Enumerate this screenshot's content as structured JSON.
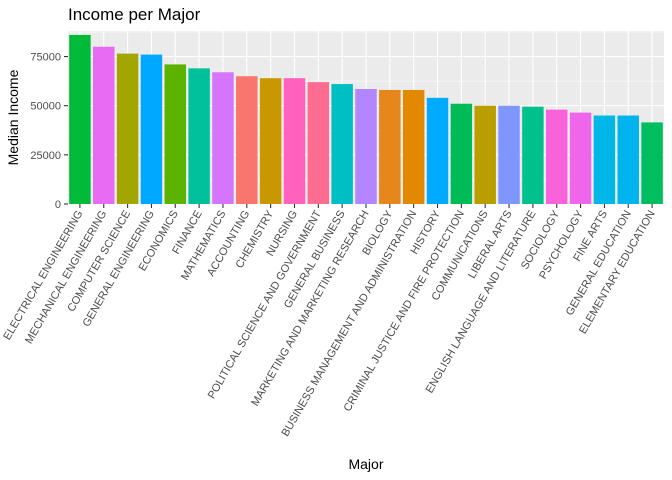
{
  "chart_data": {
    "type": "bar",
    "title": "Income per Major",
    "xlabel": "Major",
    "ylabel": "Median Income",
    "ylim": [
      0,
      88000
    ],
    "yticks": [
      0,
      25000,
      50000,
      75000
    ],
    "ytick_labels": [
      "0",
      "25000",
      "50000",
      "75000"
    ],
    "grid": true,
    "legend": "none",
    "categories": [
      "ELECTRICAL ENGINEERING",
      "MECHANICAL ENGINEERING",
      "COMPUTER SCIENCE",
      "GENERAL ENGINEERING",
      "ECONOMICS",
      "FINANCE",
      "MATHEMATICS",
      "ACCOUNTING",
      "CHEMISTRY",
      "NURSING",
      "POLITICAL SCIENCE AND GOVERNMENT",
      "GENERAL BUSINESS",
      "MARKETING AND MARKETING RESEARCH",
      "BIOLOGY",
      "BUSINESS MANAGEMENT AND ADMINISTRATION",
      "HISTORY",
      "CRIMINAL JUSTICE AND FIRE PROTECTION",
      "COMMUNICATIONS",
      "LIBERAL ARTS",
      "ENGLISH LANGUAGE AND LITERATURE",
      "SOCIOLOGY",
      "PSYCHOLOGY",
      "FINE ARTS",
      "GENERAL EDUCATION",
      "ELEMENTARY EDUCATION"
    ],
    "values": [
      86000,
      80000,
      76500,
      76000,
      71000,
      69000,
      67000,
      65000,
      64000,
      64000,
      62000,
      61000,
      58500,
      58000,
      58000,
      54000,
      51000,
      50000,
      50000,
      49500,
      48000,
      46500,
      45000,
      45000,
      41500
    ],
    "colors": [
      "#00BA38",
      "#E76BF3",
      "#A3A500",
      "#00A9FF",
      "#5BB300",
      "#00C19A",
      "#D575FE",
      "#F8766D",
      "#C99800",
      "#FF62BC",
      "#FF6C91",
      "#00BFC4",
      "#B385FF",
      "#E7861B",
      "#E38900",
      "#00ABFD",
      "#00BC56",
      "#BA9E00",
      "#7F96FF",
      "#00C08B",
      "#FA62DB",
      "#F066EA",
      "#00B8E7",
      "#00B4F0",
      "#00BD5F"
    ]
  }
}
